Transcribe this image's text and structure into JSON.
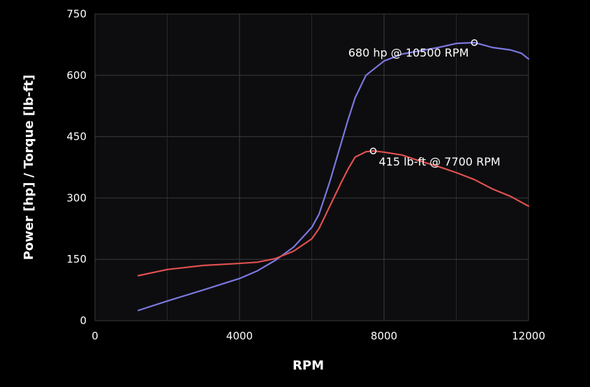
{
  "chart_data": {
    "type": "line",
    "xlabel": "RPM",
    "ylabel": "Power [hp] / Torque [lb-ft]",
    "xlim": [
      0,
      12000
    ],
    "ylim": [
      0,
      750
    ],
    "x_ticks": [
      0,
      4000,
      8000,
      12000
    ],
    "y_ticks": [
      0,
      150,
      300,
      450,
      600,
      750
    ],
    "grid": true,
    "colors": {
      "background": "#000000",
      "plot_area": "#0d0d0f",
      "grid": "#3a3a3d",
      "power": "#7b78e0",
      "torque": "#e05050"
    },
    "series": [
      {
        "key": "power",
        "x": [
          1200,
          2000,
          3000,
          4000,
          4500,
          5000,
          5500,
          6000,
          6200,
          6500,
          6800,
          7000,
          7200,
          7500,
          8000,
          8500,
          9000,
          9500,
          10000,
          10500,
          10800,
          11000,
          11500,
          11800,
          12000
        ],
        "values": [
          25,
          48,
          75,
          103,
          122,
          148,
          180,
          228,
          260,
          340,
          430,
          490,
          545,
          600,
          635,
          652,
          660,
          668,
          678,
          680,
          673,
          668,
          662,
          654,
          640
        ]
      },
      {
        "key": "torque",
        "x": [
          1200,
          2000,
          3000,
          4000,
          4500,
          5000,
          5500,
          6000,
          6200,
          6500,
          6800,
          7000,
          7200,
          7500,
          7700,
          8000,
          8500,
          9000,
          9500,
          10000,
          10500,
          11000,
          11500,
          12000
        ],
        "values": [
          110,
          125,
          135,
          140,
          143,
          152,
          170,
          200,
          225,
          280,
          335,
          370,
          400,
          413,
          415,
          412,
          405,
          390,
          377,
          362,
          345,
          322,
          304,
          280
        ]
      }
    ],
    "annotations": [
      {
        "key": "power_peak",
        "x": 10500,
        "y": 680,
        "label": "680 hp @ 10500 RPM",
        "position": "below-left"
      },
      {
        "key": "torque_peak",
        "x": 7700,
        "y": 415,
        "label": "415 lb-ft @ 7700 RPM",
        "position": "below-right"
      }
    ]
  }
}
